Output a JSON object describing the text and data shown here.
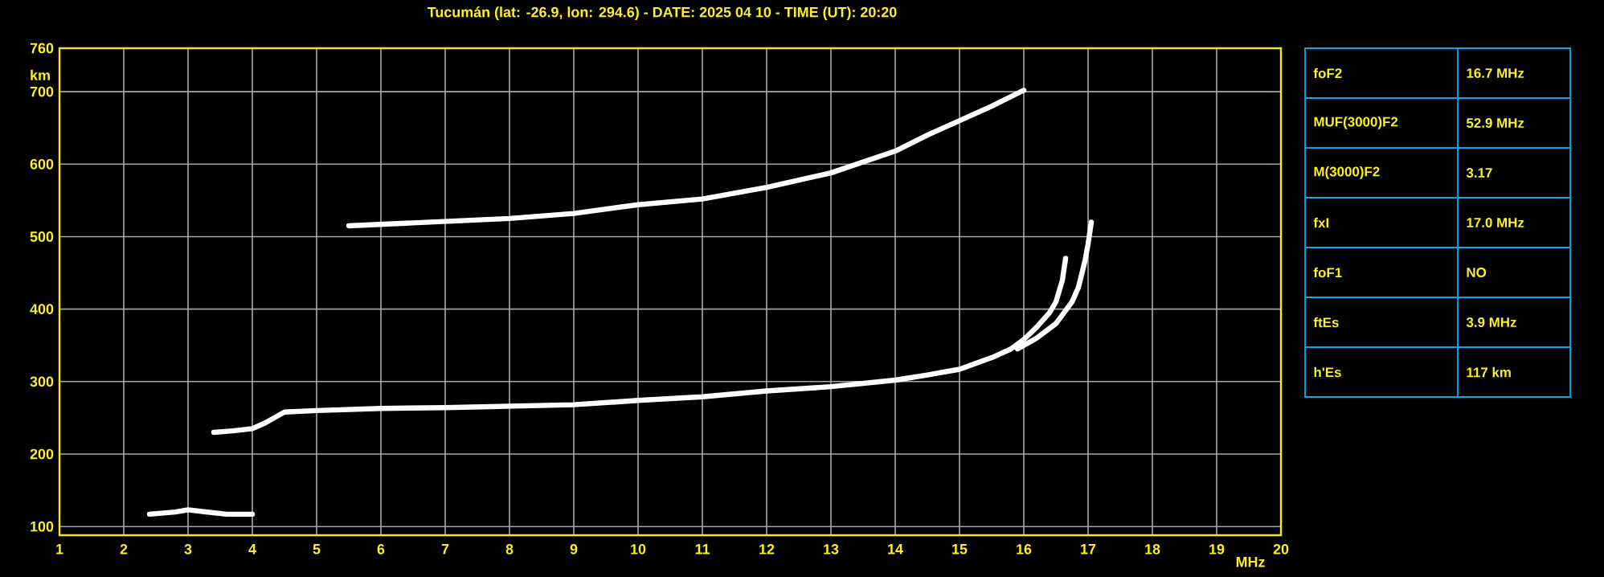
{
  "chart_data": [
    {
      "type": "line",
      "title": "Tucumán (lat: -26.9, lon: 294.6) - DATE: 2025 04 10 - TIME (UT): 20:20",
      "xlabel": "MHz",
      "ylabel": "km",
      "xlim": [
        1,
        20
      ],
      "xticks": [
        1,
        2,
        3,
        4,
        5,
        6,
        7,
        8,
        9,
        10,
        11,
        12,
        13,
        14,
        15,
        16,
        17,
        18,
        19,
        20
      ],
      "ylim": [
        88,
        760
      ],
      "yticks": [
        100,
        200,
        300,
        400,
        500,
        600,
        700,
        760
      ],
      "grid": true,
      "marker": "none",
      "series": [
        {
          "color": "#ffffff",
          "x": [
            2.4,
            2.8,
            3.0,
            3.3,
            3.6,
            4.0
          ],
          "values": [
            117,
            120,
            123,
            120,
            117,
            117
          ]
        },
        {
          "color": "#ffffff",
          "x": [
            3.4,
            3.7,
            4.0,
            4.2,
            4.5,
            5,
            6,
            7,
            8,
            9,
            10,
            11,
            12,
            13,
            14,
            14.5,
            15,
            15.5,
            15.8,
            16.0,
            16.2,
            16.4,
            16.5,
            16.6,
            16.65
          ],
          "values": [
            230,
            232,
            235,
            243,
            258,
            260,
            263,
            264,
            266,
            268,
            274,
            279,
            287,
            293,
            302,
            309,
            317,
            333,
            345,
            358,
            375,
            395,
            410,
            440,
            470
          ]
        },
        {
          "color": "#ffffff",
          "x": [
            15.9,
            16.2,
            16.5,
            16.75,
            16.85,
            16.95,
            17.0,
            17.05
          ],
          "values": [
            345,
            360,
            380,
            410,
            430,
            466,
            490,
            520
          ]
        },
        {
          "color": "#ffffff",
          "x": [
            5.5,
            6,
            7,
            8,
            9,
            10,
            11,
            12,
            13,
            14,
            14.5,
            15,
            15.5,
            16
          ],
          "values": [
            515,
            517,
            521,
            525,
            532,
            544,
            552,
            568,
            588,
            618,
            640,
            660,
            680,
            702
          ]
        }
      ]
    },
    {
      "type": "other",
      "annotations": [
        "foF2",
        "16.7 MHz",
        "MUF(3000)F2",
        "52.9 MHz",
        "M(3000)F2",
        "3.17",
        "fxI",
        "17.0 MHz",
        "foF1",
        "NO",
        "ftEs",
        "3.9 MHz",
        "h'Es",
        "117 km"
      ]
    }
  ]
}
